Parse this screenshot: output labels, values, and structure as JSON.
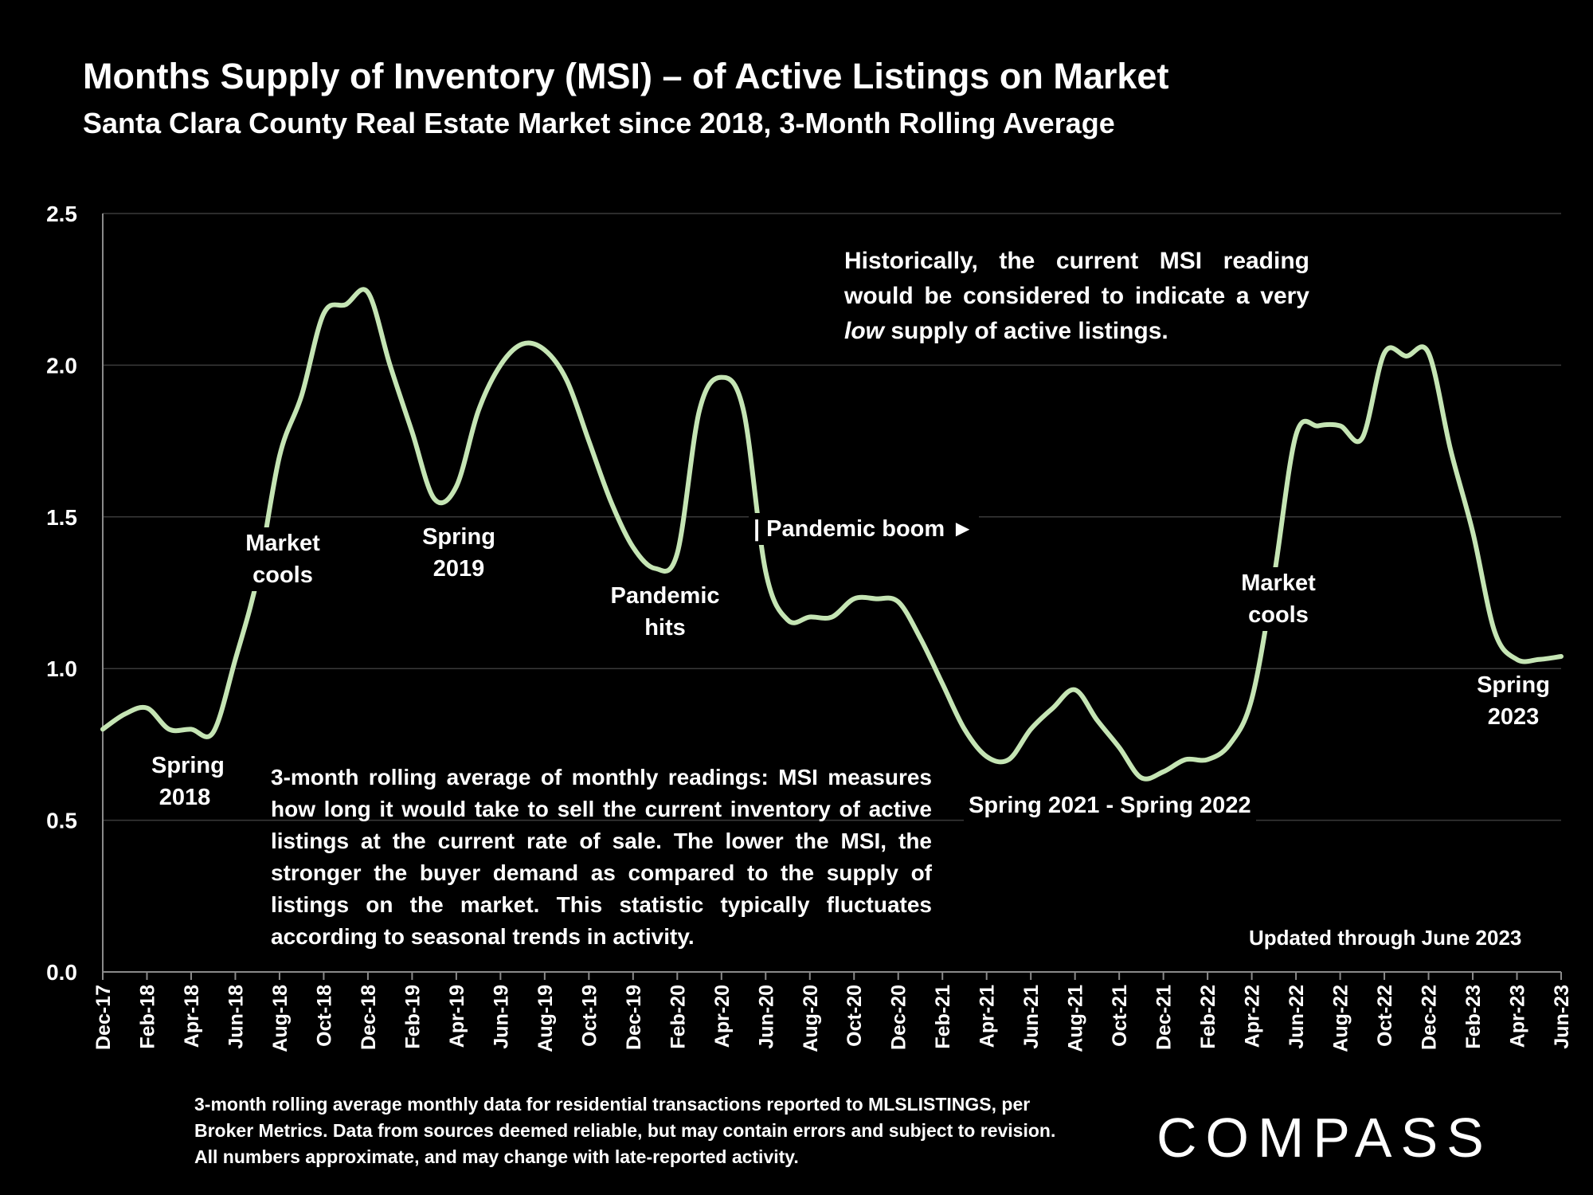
{
  "title": "Months Supply of Inventory (MSI) – of Active Listings on Market",
  "subtitle": "Santa Clara County Real Estate Market since 2018, 3-Month Rolling Average",
  "notes": {
    "top_before": "Historically, the current MSI reading would be considered to indicate a very",
    "top_italic": "low",
    "top_after": "supply of active listings.",
    "middle": "3-month rolling average of monthly readings: MSI measures how long it would take to sell the current inventory of active listings at the current rate of sale. The lower the MSI, the stronger the buyer demand as compared to the supply of listings on the market. This statistic typically fluctuates according to seasonal trends in activity.",
    "updated": "Updated through June 2023",
    "footer": "3-month rolling average monthly data for residential transactions reported to MLSLISTINGS, per Broker Metrics. Data from sources deemed reliable, but may contain errors and subject to revision. All numbers approximate, and may change with late-reported activity."
  },
  "annotations": {
    "spring_2018": [
      "Spring",
      "2018"
    ],
    "market_cools_2018": [
      "Market",
      "cools"
    ],
    "spring_2019": [
      "Spring",
      "2019"
    ],
    "pandemic_hits": [
      "Pandemic",
      "hits"
    ],
    "pandemic_boom": "| Pandemic boom ►",
    "spring_2021_2022": "Spring 2021 - Spring 2022",
    "market_cools_2022": [
      "Market",
      "cools"
    ],
    "spring_2023": [
      "Spring",
      "2023"
    ]
  },
  "logo": "COMPASS",
  "colors": {
    "background": "#000000",
    "line": "#c5e5b4",
    "text": "#ffffff",
    "grid": "#3a3a3a"
  },
  "chart_data": {
    "type": "line",
    "x": [
      "Dec-17",
      "Jan-18",
      "Feb-18",
      "Mar-18",
      "Apr-18",
      "May-18",
      "Jun-18",
      "Jul-18",
      "Aug-18",
      "Sep-18",
      "Oct-18",
      "Nov-18",
      "Dec-18",
      "Jan-19",
      "Feb-19",
      "Mar-19",
      "Apr-19",
      "May-19",
      "Jun-19",
      "Jul-19",
      "Aug-19",
      "Sep-19",
      "Oct-19",
      "Nov-19",
      "Dec-19",
      "Jan-20",
      "Feb-20",
      "Mar-20",
      "Apr-20",
      "May-20",
      "Jun-20",
      "Jul-20",
      "Aug-20",
      "Sep-20",
      "Oct-20",
      "Nov-20",
      "Dec-20",
      "Jan-21",
      "Feb-21",
      "Mar-21",
      "Apr-21",
      "May-21",
      "Jun-21",
      "Jul-21",
      "Aug-21",
      "Sep-21",
      "Oct-21",
      "Nov-21",
      "Dec-21",
      "Jan-22",
      "Feb-22",
      "Mar-22",
      "Apr-22",
      "May-22",
      "Jun-22",
      "Jul-22",
      "Aug-22",
      "Sep-22",
      "Oct-22",
      "Nov-22",
      "Dec-22",
      "Jan-23",
      "Feb-23",
      "Mar-23",
      "Apr-23",
      "May-23",
      "Jun-23"
    ],
    "tick_labels": [
      "Dec-17",
      "Feb-18",
      "Apr-18",
      "Jun-18",
      "Aug-18",
      "Oct-18",
      "Dec-18",
      "Feb-19",
      "Apr-19",
      "Jun-19",
      "Aug-19",
      "Oct-19",
      "Dec-19",
      "Feb-20",
      "Apr-20",
      "Jun-20",
      "Aug-20",
      "Oct-20",
      "Dec-20",
      "Feb-21",
      "Apr-21",
      "Jun-21",
      "Aug-21",
      "Oct-21",
      "Dec-21",
      "Feb-22",
      "Apr-22",
      "Jun-22",
      "Aug-22",
      "Oct-22",
      "Dec-22",
      "Feb-23",
      "Apr-23",
      "Jun-23"
    ],
    "values": [
      0.8,
      0.85,
      0.87,
      0.8,
      0.8,
      0.79,
      1.03,
      1.3,
      1.7,
      1.9,
      2.17,
      2.2,
      2.24,
      2.0,
      1.78,
      1.56,
      1.6,
      1.85,
      2.0,
      2.07,
      2.05,
      1.95,
      1.75,
      1.55,
      1.4,
      1.33,
      1.38,
      1.85,
      1.96,
      1.85,
      1.32,
      1.16,
      1.17,
      1.17,
      1.23,
      1.23,
      1.22,
      1.1,
      0.95,
      0.8,
      0.71,
      0.7,
      0.8,
      0.87,
      0.93,
      0.83,
      0.74,
      0.64,
      0.66,
      0.7,
      0.7,
      0.75,
      0.9,
      1.3,
      1.77,
      1.8,
      1.8,
      1.76,
      2.04,
      2.03,
      2.04,
      1.72,
      1.45,
      1.12,
      1.03,
      1.03,
      1.04
    ],
    "yticks": [
      "0.0",
      "0.5",
      "1.0",
      "1.5",
      "2.0",
      "2.5"
    ],
    "ylim": [
      0,
      2.5
    ],
    "grid": true,
    "title": "Months Supply of Inventory (MSI) – of Active Listings on Market",
    "xlabel": "",
    "ylabel": ""
  }
}
